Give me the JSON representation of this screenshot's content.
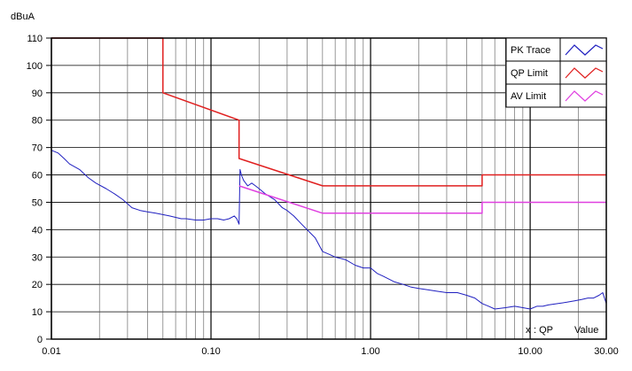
{
  "chart_data": {
    "type": "line",
    "ylabel": "dBuA",
    "xscale": "log",
    "xlim": [
      0.01,
      30
    ],
    "ylim": [
      0,
      110
    ],
    "x_ticks": [
      {
        "value": 0.01,
        "label": "0.01"
      },
      {
        "value": 0.1,
        "label": "0.10"
      },
      {
        "value": 1,
        "label": "1.00"
      },
      {
        "value": 10,
        "label": "10.00"
      },
      {
        "value": 30,
        "label": "30.00"
      }
    ],
    "y_ticks": [
      0,
      10,
      20,
      30,
      40,
      50,
      60,
      70,
      80,
      90,
      100,
      110
    ],
    "grid": true,
    "legend": {
      "position": "top-right",
      "entries": [
        "PK Trace",
        "QP Limit",
        "AV Limit"
      ]
    },
    "series": [
      {
        "name": "PK Trace",
        "color": "#2020c0",
        "x": [
          0.01,
          0.011,
          0.012,
          0.013,
          0.015,
          0.017,
          0.019,
          0.022,
          0.025,
          0.028,
          0.032,
          0.036,
          0.04,
          0.045,
          0.05,
          0.055,
          0.06,
          0.065,
          0.07,
          0.08,
          0.09,
          0.1,
          0.11,
          0.12,
          0.13,
          0.14,
          0.145,
          0.15,
          0.152,
          0.155,
          0.16,
          0.17,
          0.18,
          0.19,
          0.2,
          0.22,
          0.25,
          0.28,
          0.3,
          0.33,
          0.37,
          0.4,
          0.45,
          0.5,
          0.55,
          0.6,
          0.7,
          0.8,
          0.9,
          1.0,
          1.1,
          1.2,
          1.4,
          1.6,
          1.8,
          2.0,
          2.3,
          2.6,
          3.0,
          3.5,
          4.0,
          4.5,
          5.0,
          5.5,
          6.0,
          7.0,
          8.0,
          9.0,
          10.0,
          11.0,
          12.0,
          13.0,
          15.0,
          17.0,
          19.0,
          21.0,
          23.0,
          25.0,
          27.0,
          28.5,
          30.0
        ],
        "values": [
          69,
          68,
          66,
          64,
          62,
          59,
          57,
          55,
          53,
          51,
          48,
          47,
          46.5,
          46,
          45.5,
          45,
          44.5,
          44,
          44,
          43.5,
          43.5,
          44,
          44,
          43.5,
          44,
          45,
          44,
          42,
          62,
          60,
          58,
          56,
          57,
          56,
          55,
          53,
          51,
          48,
          47,
          45,
          42,
          40,
          37,
          32,
          31,
          30,
          29,
          27,
          26,
          26,
          24,
          23,
          21,
          20,
          19,
          18.5,
          18,
          17.5,
          17,
          17,
          16,
          15,
          13,
          12,
          11,
          11.5,
          12,
          11.5,
          11,
          12,
          12,
          12.5,
          13,
          13.5,
          14,
          14.5,
          15,
          15,
          16,
          17,
          13
        ]
      },
      {
        "name": "QP Limit",
        "color": "#e02020",
        "x": [
          0.01,
          0.05,
          0.05,
          0.15,
          0.15,
          0.5,
          5.0,
          5.0,
          30.0
        ],
        "values": [
          110,
          110,
          90,
          80,
          66,
          56,
          56,
          60,
          60
        ]
      },
      {
        "name": "AV Limit",
        "color": "#e040e0",
        "x": [
          0.15,
          0.5,
          5.0,
          5.0,
          30.0
        ],
        "values": [
          56,
          46,
          46,
          50,
          50
        ]
      }
    ]
  },
  "annotation": {
    "marker": "x",
    "marker_color": "#e02020",
    "text": ": QP",
    "value_label": "Value"
  }
}
